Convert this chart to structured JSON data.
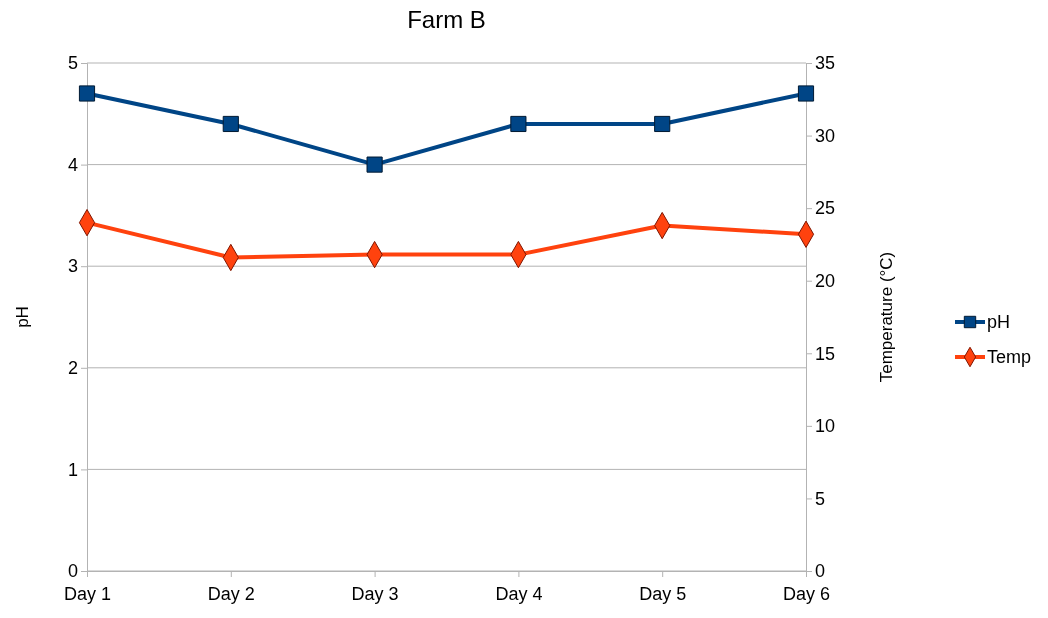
{
  "chart_data": {
    "type": "line",
    "title": "Farm B",
    "ylabel": "pH",
    "y2label": "Temperature (°C)",
    "categories": [
      "Day 1",
      "Day 2",
      "Day 3",
      "Day 4",
      "Day 5",
      "Day 6"
    ],
    "series": [
      {
        "name": "pH",
        "color": "#004586",
        "marker": "square",
        "values": [
          4.7,
          4.4,
          4.0,
          4.4,
          4.4,
          4.7
        ]
      },
      {
        "name": "Temp",
        "color": "#ff420e",
        "marker": "diamond",
        "axis": "y2",
        "values": [
          24,
          21.6,
          21.8,
          21.8,
          23.8,
          23.2
        ]
      }
    ],
    "ylim": [
      0,
      5
    ],
    "yticks": [
      0,
      1,
      2,
      3,
      4,
      5
    ],
    "y2lim": [
      0,
      35
    ],
    "y2ticks": [
      0,
      5,
      10,
      15,
      20,
      25,
      30,
      35
    ],
    "grid": "y",
    "legend": "right"
  }
}
